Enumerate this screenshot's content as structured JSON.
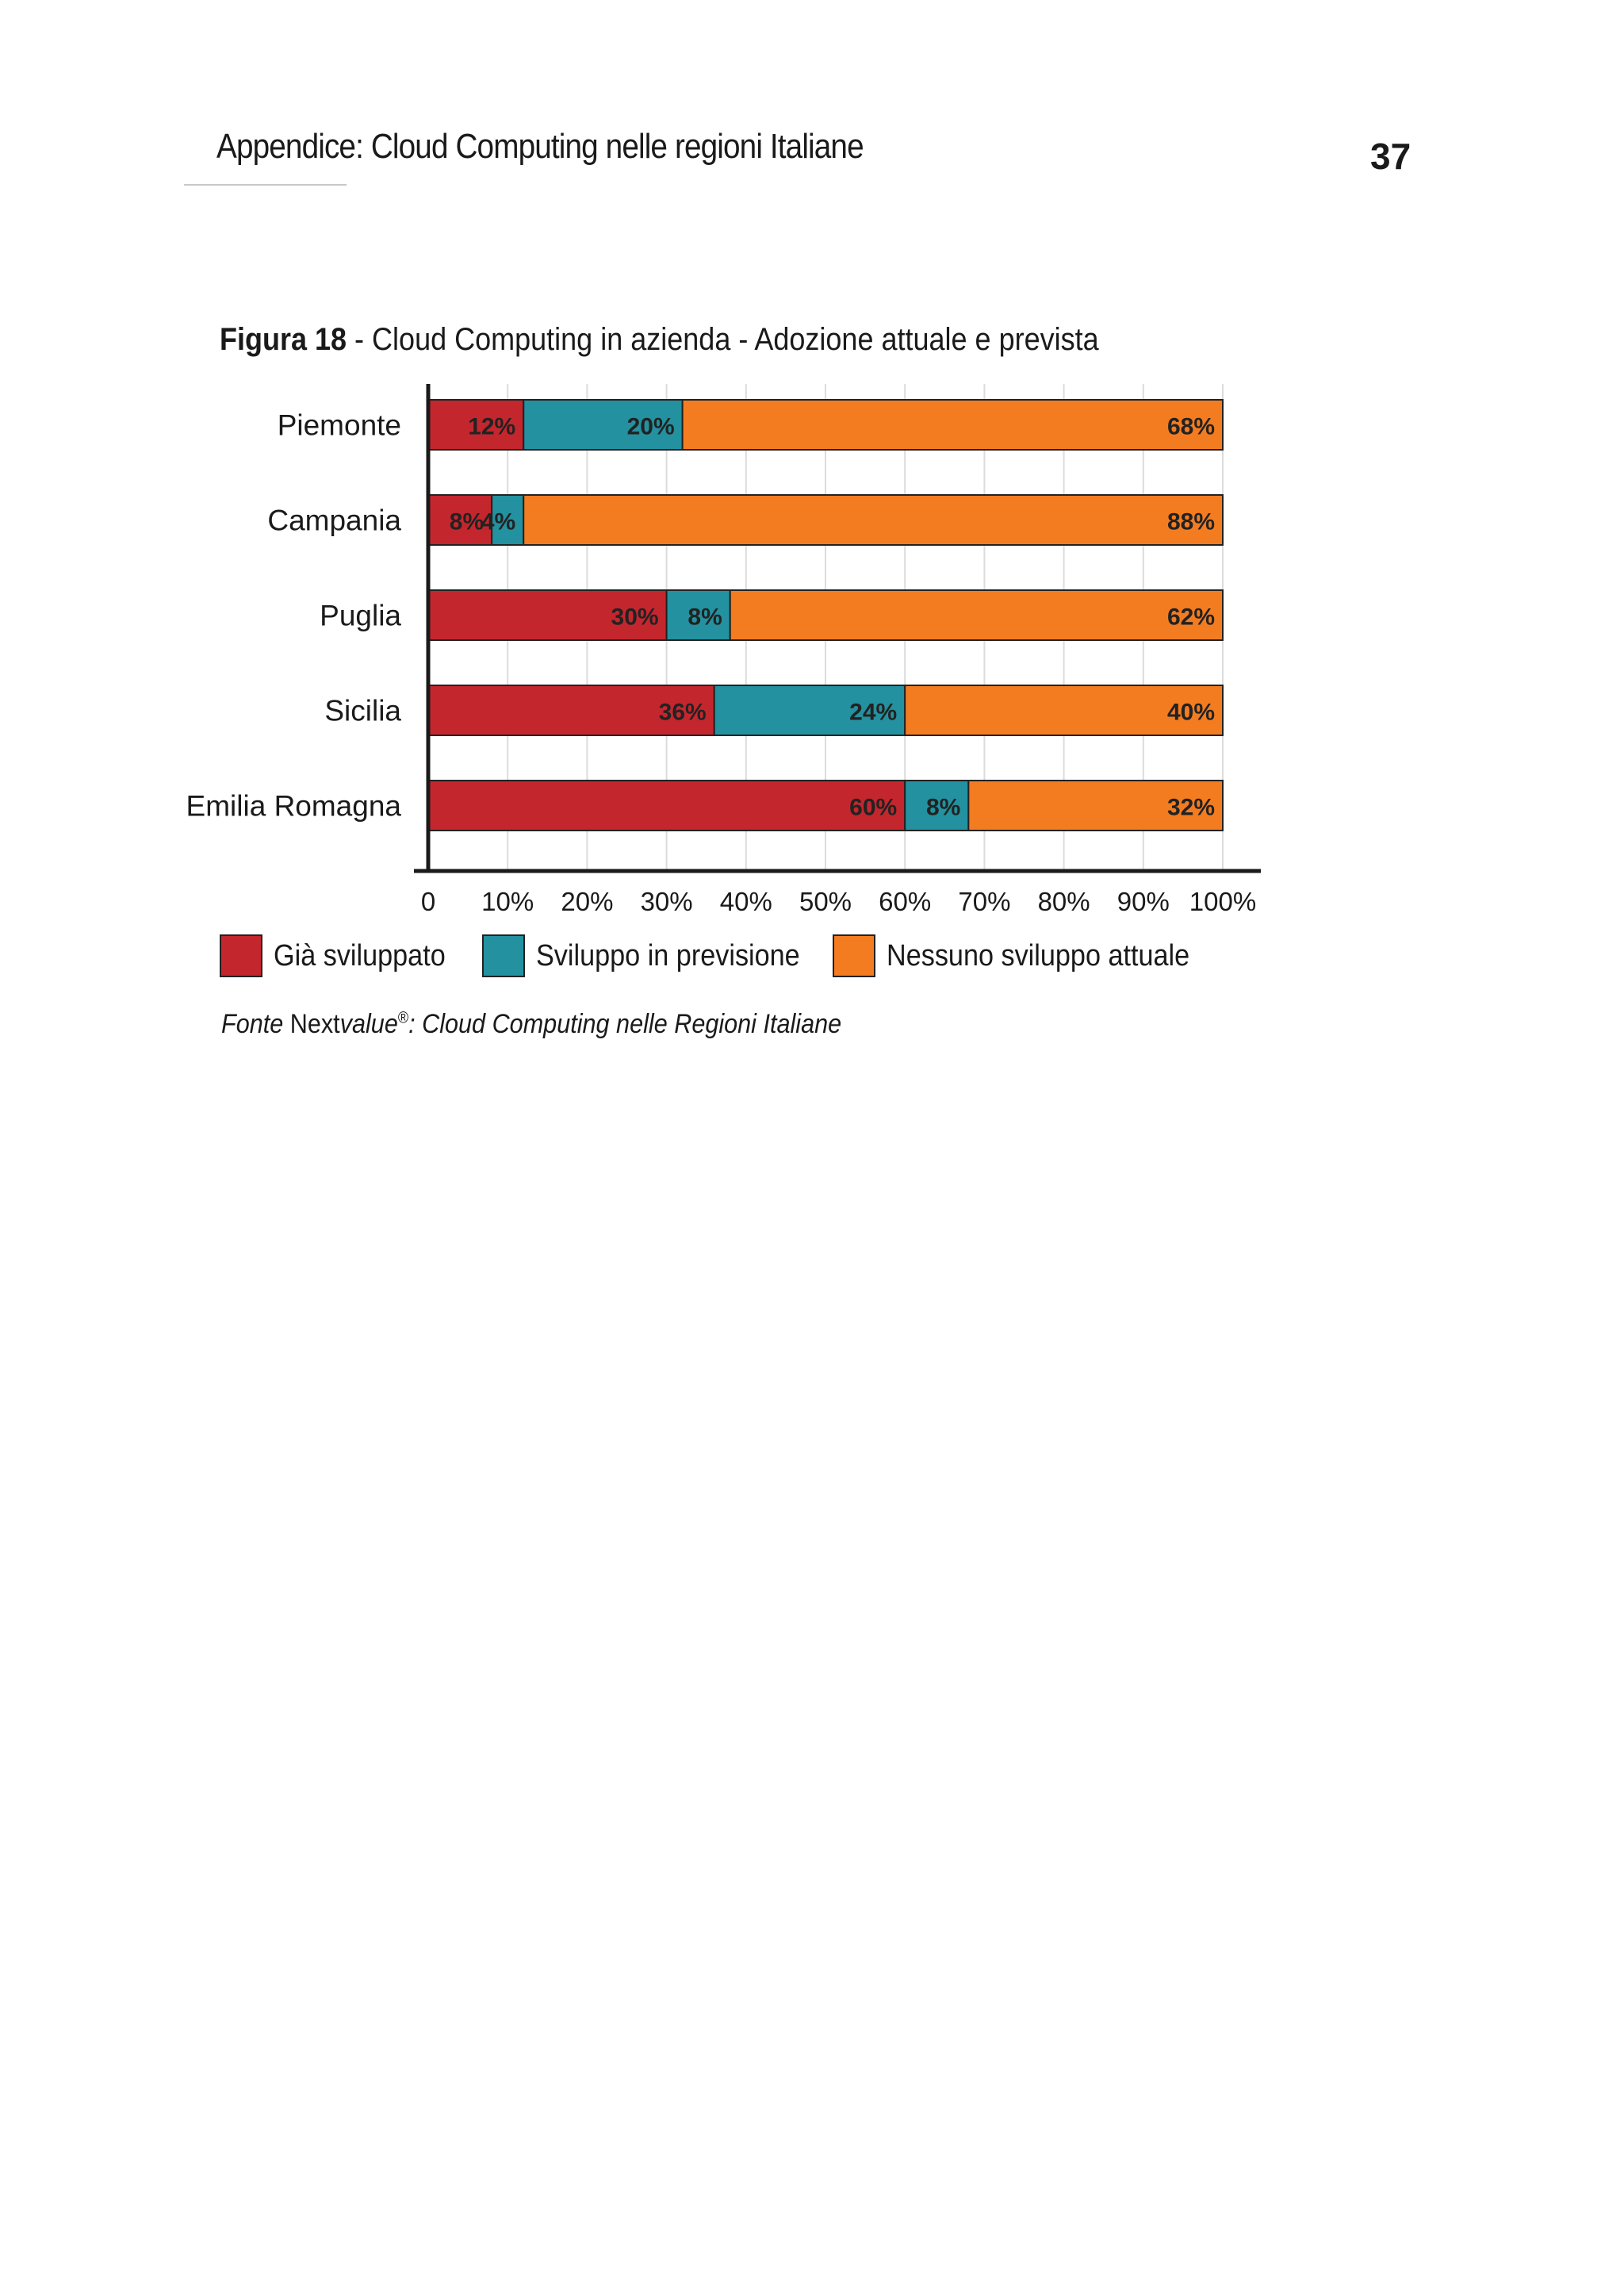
{
  "header": {
    "title": "Appendice: Cloud Computing nelle regioni Italiane",
    "page_number": "37"
  },
  "figure": {
    "label": "Figura 18",
    "separator": " - ",
    "title": "Cloud Computing in azienda - Adozione attuale e prevista"
  },
  "source": {
    "prefix": "Fonte",
    "brand_a": "Next",
    "brand_b": "value",
    "registered": "®",
    "rest": ": Cloud Computing nelle Regioni Italiane"
  },
  "colors": {
    "gia": "#c4262e",
    "previsione": "#23919f",
    "nessuno": "#f47c20"
  },
  "chart_data": {
    "type": "bar",
    "orientation": "horizontal",
    "stacked": true,
    "title": "Cloud Computing in azienda - Adozione attuale e prevista",
    "categories": [
      "Piemonte",
      "Campania",
      "Puglia",
      "Sicilia",
      "Emilia Romagna"
    ],
    "series": [
      {
        "name": "Già sviluppato",
        "color": "#c4262e",
        "values": [
          12,
          8,
          30,
          36,
          60
        ],
        "labels": [
          "12%",
          "8%",
          "30%",
          "36%",
          "60%"
        ]
      },
      {
        "name": "Sviluppo in previsione",
        "color": "#23919f",
        "values": [
          20,
          4,
          8,
          24,
          8
        ],
        "labels": [
          "20%",
          "4%",
          "8%",
          "24%",
          "8%"
        ]
      },
      {
        "name": "Nessuno sviluppo attuale",
        "color": "#f47c20",
        "values": [
          68,
          88,
          62,
          40,
          32
        ],
        "labels": [
          "68%",
          "88%",
          "62%",
          "40%",
          "32%"
        ]
      }
    ],
    "xlim": [
      0,
      100
    ],
    "x_ticks": [
      0,
      10,
      20,
      30,
      40,
      50,
      60,
      70,
      80,
      90,
      100
    ],
    "x_tick_labels": [
      "0",
      "10%",
      "20%",
      "30%",
      "40%",
      "50%",
      "60%",
      "70%",
      "80%",
      "90%",
      "100%"
    ],
    "grid": "vertical",
    "legend_position": "bottom"
  }
}
